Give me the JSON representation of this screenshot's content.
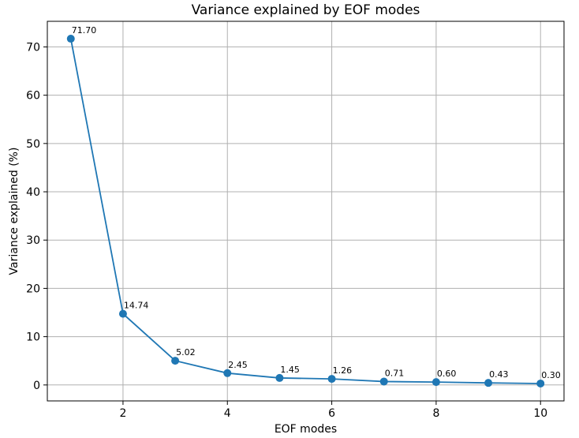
{
  "chart_data": {
    "type": "line",
    "title": "Variance explained by EOF modes",
    "xlabel": "EOF modes",
    "ylabel": "Variance explained (%)",
    "x": [
      1,
      2,
      3,
      4,
      5,
      6,
      7,
      8,
      9,
      10
    ],
    "values": [
      71.7,
      14.74,
      5.02,
      2.45,
      1.45,
      1.26,
      0.71,
      0.6,
      0.43,
      0.3
    ],
    "data_labels": [
      "71.70",
      "14.74",
      "5.02",
      "2.45",
      "1.45",
      "1.26",
      "0.71",
      "0.60",
      "0.43",
      "0.30"
    ],
    "xticks": [
      2,
      4,
      6,
      8,
      10
    ],
    "xtick_labels": [
      "2",
      "4",
      "6",
      "8",
      "10"
    ],
    "yticks": [
      0,
      10,
      20,
      30,
      40,
      50,
      60,
      70
    ],
    "ytick_labels": [
      "0",
      "10",
      "20",
      "30",
      "40",
      "50",
      "60",
      "70"
    ],
    "xlim": [
      0.55,
      10.45
    ],
    "ylim": [
      -3.3,
      75.3
    ],
    "grid": true,
    "marker": "circle",
    "line_color": "#1f77b4"
  }
}
